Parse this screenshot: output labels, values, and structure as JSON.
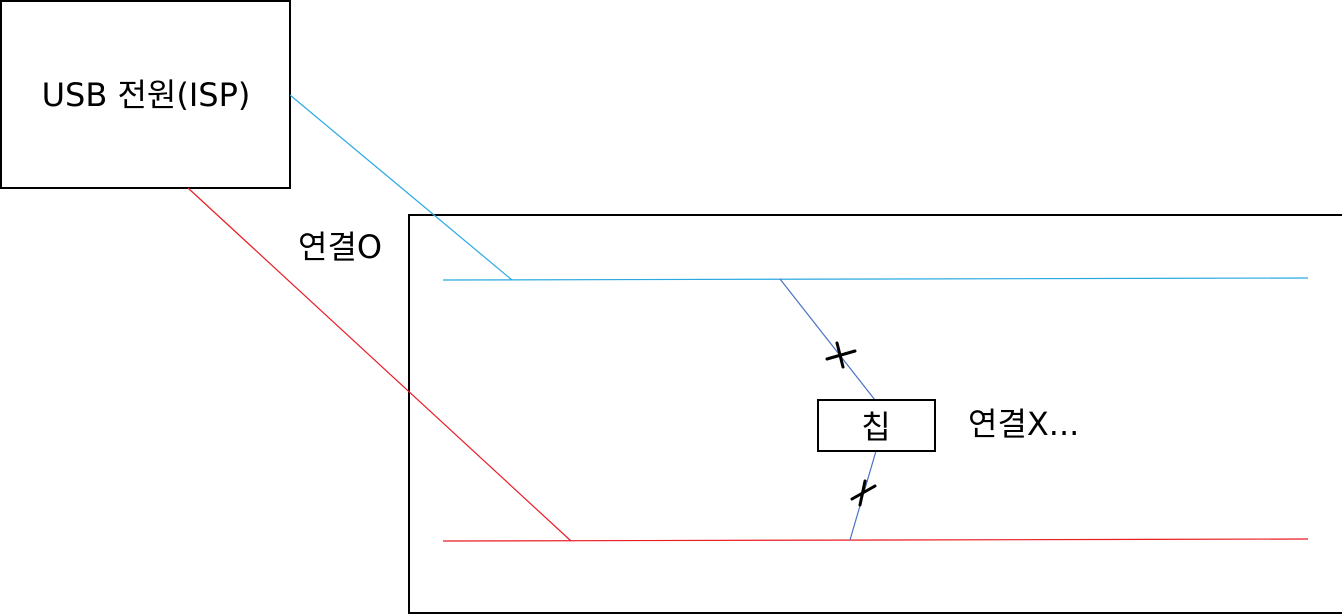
{
  "labels": {
    "usb_power": "USB 전원(ISP)",
    "connected": "연결O",
    "chip": "칩",
    "not_connected": "연결X..."
  },
  "colors": {
    "vcc_line": "#29a9e0",
    "gnd_line": "#ea1c24",
    "chip_wire": "#4a72c4",
    "box_border": "#000000",
    "background": "#ffffff"
  }
}
